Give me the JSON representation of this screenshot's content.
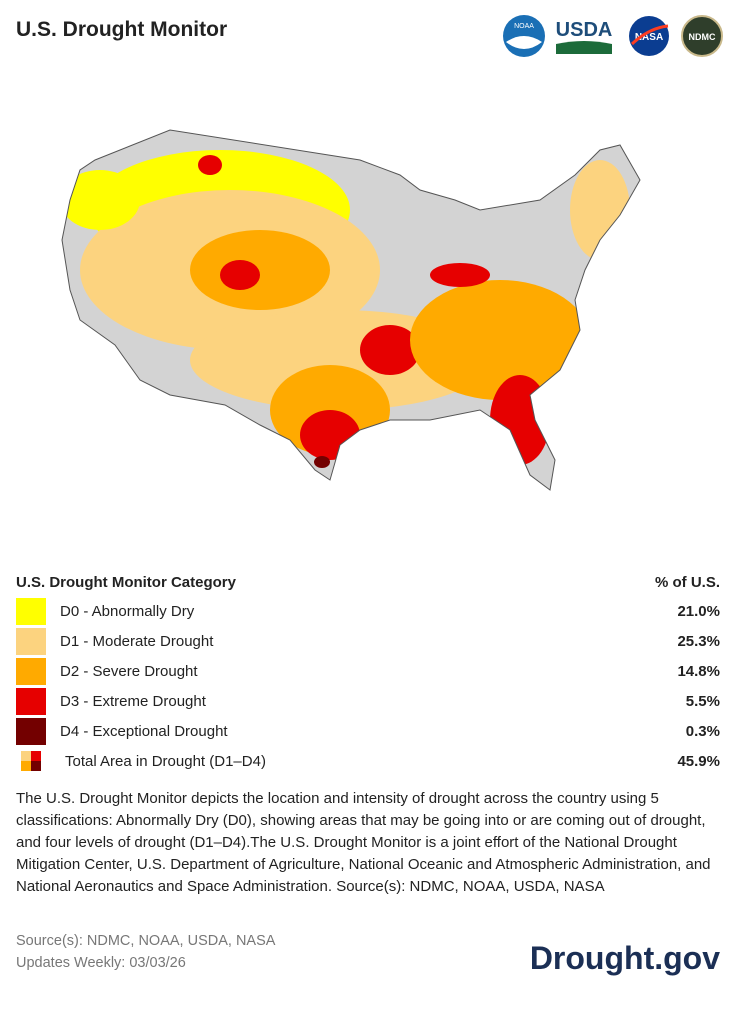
{
  "header": {
    "title": "U.S. Drought Monitor",
    "logos": [
      "NOAA",
      "USDA",
      "NASA",
      "NDMC"
    ]
  },
  "legend": {
    "heading": "U.S. Drought Monitor Category",
    "value_heading": "% of U.S.",
    "rows": [
      {
        "label": "D0 - Abnormally Dry",
        "value": "21.0%",
        "color": "#ffff00"
      },
      {
        "label": "D1 - Moderate Drought",
        "value": "25.3%",
        "color": "#fcd37f"
      },
      {
        "label": "D2 - Severe Drought",
        "value": "14.8%",
        "color": "#ffaa00"
      },
      {
        "label": "D3 - Extreme Drought",
        "value": "5.5%",
        "color": "#e60000"
      },
      {
        "label": "D4 - Exceptional Drought",
        "value": "0.3%",
        "color": "#730000"
      },
      {
        "label": "Total Area in Drought (D1–D4)",
        "value": "45.9%"
      }
    ]
  },
  "description": "The U.S. Drought Monitor depicts the location and intensity of drought across the country using 5 classifications: Abnormally Dry (D0), showing areas that may be going into or are coming out of drought, and four levels of drought (D1–D4).The U.S. Drought Monitor is a joint effort of the National Drought Mitigation Center, U.S. Department of Agriculture, National Oceanic and Atmospheric Administration, and National Aeronautics and Space Administration. Source(s): NDMC, NOAA, USDA, NASA",
  "footer": {
    "sources": "Source(s): NDMC, NOAA, USDA, NASA",
    "updates": "Updates Weekly: 03/03/26",
    "brand": "Drought.gov"
  }
}
